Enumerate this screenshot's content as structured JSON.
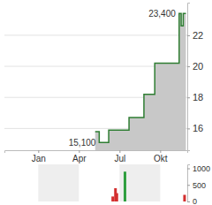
{
  "chart_data": [
    {
      "type": "line",
      "line_style": "step",
      "color": "#2e7d32",
      "grid": true,
      "x": [
        4.2,
        4.5,
        5.2,
        6.7,
        7.8,
        8.6,
        10.4,
        10.55,
        10.7,
        10.9
      ],
      "values": [
        15.8,
        15.1,
        15.9,
        16.7,
        18.2,
        20.2,
        23.4,
        22.6,
        23.4,
        23.4
      ],
      "xlim": [
        -2.5,
        11
      ],
      "xticks": [
        {
          "value": 0,
          "label": "Jan"
        },
        {
          "value": 3,
          "label": "Apr"
        },
        {
          "value": 6,
          "label": "Jul"
        },
        {
          "value": 9,
          "label": "Okt"
        }
      ],
      "ylim": [
        14.6,
        24.1
      ],
      "yticks": [
        16,
        18,
        20,
        22
      ],
      "annotations": [
        {
          "text": "23,400",
          "x": 10.4,
          "y": 23.4
        },
        {
          "text": "15,100",
          "x": 4.5,
          "y": 15.1
        }
      ]
    },
    {
      "type": "bar",
      "x": [
        5.5,
        5.7,
        5.8,
        6.4,
        10.8
      ],
      "values": [
        150,
        400,
        250,
        900,
        200
      ],
      "colors": [
        "#d32f2f",
        "#d32f2f",
        "#d32f2f",
        "#2e9e3e",
        "#d32f2f"
      ],
      "xlim": [
        -2.5,
        11
      ],
      "ylim": [
        0,
        1120
      ],
      "yticks": [
        0,
        500,
        1000
      ]
    }
  ]
}
